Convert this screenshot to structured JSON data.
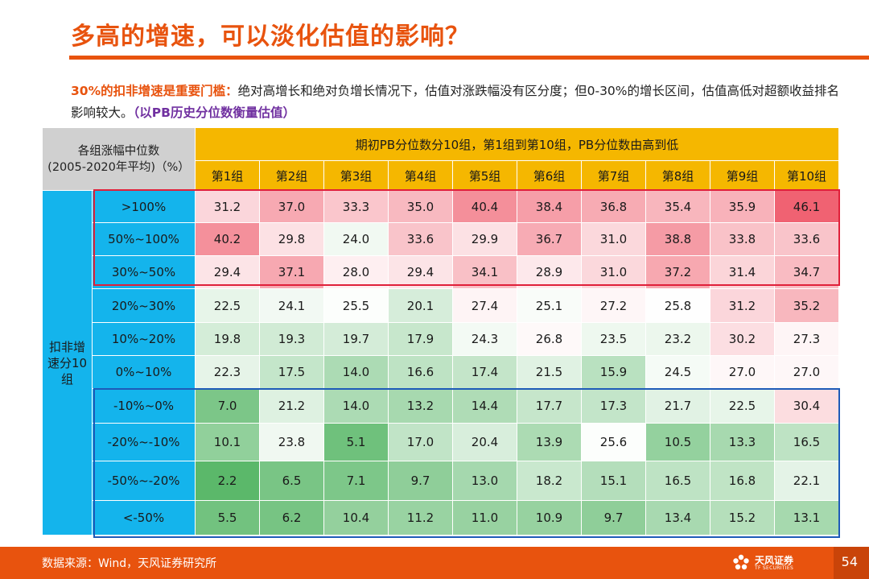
{
  "title": "多高的增速，可以淡化估值的影响？",
  "lead": {
    "highlight": "30%的扣非增速是重要门槛：",
    "body": "绝对高增长和绝对负增长情况下，估值对涨跌幅没有区分度；但0-30%的增长区间，估值高低对超额收益排名影响较大。",
    "note": "（以PB历史分位数衡量估值）"
  },
  "table": {
    "corner_line1": "各组涨幅中位数",
    "corner_line2": "(2005-2020年平均)（%）",
    "header": "期初PB分位数分10组，第1组到第10组，PB分位数由高到低",
    "col_groups": [
      "第1组",
      "第2组",
      "第3组",
      "第4组",
      "第5组",
      "第6组",
      "第7组",
      "第8组",
      "第9组",
      "第10组"
    ],
    "row_group_label": "扣非增速分10组",
    "rows": [
      {
        "label": ">100%",
        "values": [
          "31.2",
          "37.0",
          "33.3",
          "35.0",
          "40.4",
          "38.4",
          "36.8",
          "35.4",
          "35.9",
          "46.1"
        ]
      },
      {
        "label": "50%~100%",
        "values": [
          "40.2",
          "29.8",
          "24.0",
          "33.6",
          "29.9",
          "36.7",
          "31.0",
          "38.8",
          "33.8",
          "33.6"
        ]
      },
      {
        "label": "30%~50%",
        "values": [
          "29.4",
          "37.1",
          "28.0",
          "29.4",
          "34.1",
          "28.9",
          "31.0",
          "37.2",
          "31.4",
          "34.7"
        ]
      },
      {
        "label": "20%~30%",
        "values": [
          "22.5",
          "24.1",
          "25.5",
          "20.1",
          "27.4",
          "25.1",
          "27.2",
          "25.8",
          "31.2",
          "35.2"
        ]
      },
      {
        "label": "10%~20%",
        "values": [
          "19.8",
          "19.3",
          "19.7",
          "17.9",
          "24.3",
          "26.8",
          "23.5",
          "23.2",
          "30.2",
          "27.3"
        ]
      },
      {
        "label": "0%~10%",
        "values": [
          "22.3",
          "17.5",
          "14.0",
          "16.6",
          "17.4",
          "21.5",
          "15.9",
          "24.5",
          "27.0",
          "27.0"
        ]
      },
      {
        "label": "-10%~0%",
        "values": [
          "7.0",
          "21.2",
          "14.0",
          "13.2",
          "14.4",
          "17.7",
          "17.3",
          "21.7",
          "22.5",
          "30.4"
        ]
      },
      {
        "label": "-20%~-10%",
        "values": [
          "10.1",
          "23.8",
          "5.1",
          "17.0",
          "20.4",
          "13.9",
          "25.6",
          "10.5",
          "13.3",
          "16.5"
        ]
      },
      {
        "label": "-50%~-20%",
        "values": [
          "2.2",
          "6.5",
          "7.1",
          "9.7",
          "13.0",
          "18.2",
          "15.1",
          "16.5",
          "16.8",
          "22.1"
        ]
      },
      {
        "label": "<-50%",
        "values": [
          "5.5",
          "6.2",
          "10.4",
          "11.2",
          "11.0",
          "10.9",
          "9.7",
          "13.4",
          "15.2",
          "13.1"
        ]
      }
    ],
    "colors": {
      "high": "#F06272",
      "mid": "#FFFFFF",
      "low": "#5BB86A",
      "header": "#F5B700",
      "row_header": "#14B4EC",
      "corner": "#D0D0D0",
      "box_top": "#E0203A",
      "box_bottom": "#1E5BB8"
    }
  },
  "footer": {
    "source": "数据来源：Wind，天风证券研究所",
    "logo_name": "天风证券",
    "logo_sub": "TF SECURITIES",
    "page": "54"
  }
}
